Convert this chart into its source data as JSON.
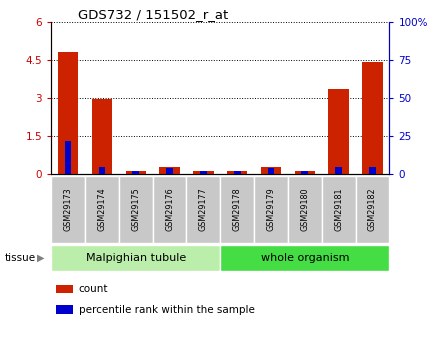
{
  "title": "GDS732 / 151502_r_at",
  "samples": [
    "GSM29173",
    "GSM29174",
    "GSM29175",
    "GSM29176",
    "GSM29177",
    "GSM29178",
    "GSM29179",
    "GSM29180",
    "GSM29181",
    "GSM29182"
  ],
  "count_values": [
    4.85,
    2.97,
    0.12,
    0.27,
    0.12,
    0.12,
    0.28,
    0.12,
    3.35,
    4.45
  ],
  "percentile_values": [
    22,
    5,
    2,
    4,
    2,
    2,
    4,
    2,
    5,
    5
  ],
  "left_ylim": [
    0,
    6
  ],
  "right_ylim": [
    0,
    100
  ],
  "left_yticks": [
    0,
    1.5,
    3,
    4.5,
    6
  ],
  "right_yticks": [
    0,
    25,
    50,
    75,
    100
  ],
  "left_ytick_labels": [
    "0",
    "1.5",
    "3",
    "4.5",
    "6"
  ],
  "right_ytick_labels": [
    "0",
    "25",
    "50",
    "75",
    "100%"
  ],
  "left_ylabel_color": "#cc0000",
  "right_ylabel_color": "#0000cc",
  "count_color": "#cc2200",
  "percentile_color": "#0000cc",
  "grid_color": "#000000",
  "tissue_groups": [
    {
      "label": "Malpighian tubule",
      "start": 0,
      "end": 5,
      "color": "#bbeeaa"
    },
    {
      "label": "whole organism",
      "start": 5,
      "end": 10,
      "color": "#44dd44"
    }
  ],
  "legend_items": [
    {
      "label": "count",
      "color": "#cc2200"
    },
    {
      "label": "percentile rank within the sample",
      "color": "#0000cc"
    }
  ],
  "tick_label_bg": "#c8c8c8",
  "bar_width": 0.6,
  "pct_bar_width": 0.2
}
